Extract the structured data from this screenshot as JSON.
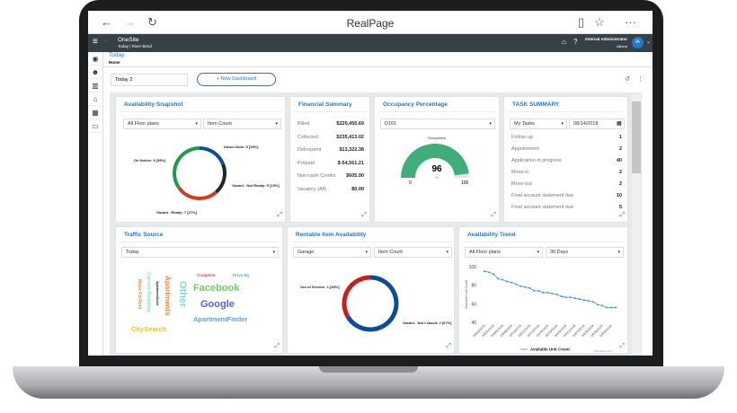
{
  "browser": {
    "title": "RealPage"
  },
  "header": {
    "app": "OneSite",
    "context": "Today | River Bend",
    "user": "Internal Administrator",
    "user_sub": "Allbest",
    "avatar": "IA"
  },
  "breadcrumb": {
    "title": "Today",
    "sub": "Home"
  },
  "toolbar": {
    "dashboard_value": "Today 2",
    "new_dashboard": "+ New Dashboard"
  },
  "availability_snapshot": {
    "title": "Availability Snapshot",
    "filter1": "All Floor plans",
    "filter2": "Item Count",
    "slices": [
      {
        "label": "Down Units: 5 [19%]",
        "value": 5,
        "color": "#0a4f96"
      },
      {
        "label": "Vacant - Not Ready: 5 [19%]",
        "value": 5,
        "color": "#1d252c"
      },
      {
        "label": "Vacant - Ready: 7 [27%]",
        "value": 7,
        "color": "#cc3f1d"
      },
      {
        "label": "On Notice: 9 [35%]",
        "value": 9,
        "color": "#1b9a4a"
      }
    ]
  },
  "financial_summary": {
    "title": "Financial Summary",
    "rows": [
      {
        "label": "Billed",
        "value": "$220,450.69"
      },
      {
        "label": "Collected",
        "value": "$235,413.02"
      },
      {
        "label": "Delinquent",
        "value": "$13,322.38"
      },
      {
        "label": "Prepaid",
        "value": "$-54,561.21"
      },
      {
        "label": "Non-cash Credits",
        "value": "$605.00"
      },
      {
        "label": "Vacancy (All)",
        "value": "$0.00"
      }
    ]
  },
  "occupancy": {
    "title": "Occupancy Percentage",
    "filter": "D101",
    "gauge_title": "Occupancy",
    "value": "96",
    "unit": "%",
    "min": "0",
    "max": "100",
    "color": "#3fae7a"
  },
  "task_summary": {
    "title": "TASK SUMMARY",
    "filter": "My Tasks",
    "date": "08/14/2018",
    "rows": [
      {
        "label": "Follow-up",
        "value": "1"
      },
      {
        "label": "Appointment",
        "value": "2"
      },
      {
        "label": "Application in progress",
        "value": "40"
      },
      {
        "label": "Move-in",
        "value": "2"
      },
      {
        "label": "Move-out",
        "value": "2"
      },
      {
        "label": "Final account statement due",
        "value": "10"
      },
      {
        "label": "Final account statement due",
        "value": "5"
      }
    ]
  },
  "traffic_source": {
    "title": "Traffic Source",
    "filter": "Today",
    "words": [
      {
        "text": "Facebook",
        "color": "#6ad15a"
      },
      {
        "text": "Google",
        "color": "#5a5fd6"
      },
      {
        "text": "ApartmentFinder",
        "color": "#5aa6e0"
      },
      {
        "text": "CitySearch",
        "color": "#e5c52a"
      },
      {
        "text": "Other",
        "color": "#7fd9dc"
      },
      {
        "text": "Apartments",
        "color": "#f08a3c"
      },
      {
        "text": "Current-Resident",
        "color": "#7fd9dc"
      },
      {
        "text": "Move ForRent",
        "color": "#f08a3c"
      },
      {
        "text": "Craigslist",
        "color": "#e0464d"
      },
      {
        "text": "Drive-By",
        "color": "#5aa6e0"
      },
      {
        "text": "ApartmentGuide",
        "color": "#222222"
      }
    ]
  },
  "rentable": {
    "title": "Rentable Item Availability",
    "filter1": "Garage",
    "filter2": "Item Count",
    "slices": [
      {
        "label": "Vacant - Not Leased: 2 [67%]",
        "value": 2,
        "color": "#0a4f96"
      },
      {
        "label": "Out of Service: 1 [33%]",
        "value": 1,
        "color": "#cc1d1d"
      }
    ]
  },
  "availability_trend": {
    "title": "Availability Trend",
    "filter1": "All Floor plans",
    "filter2": "30 Days"
  },
  "chart_data": {
    "type": "line",
    "ylabel": "Available Unit Count",
    "ylim": [
      40,
      100
    ],
    "yticks": [
      40,
      60,
      80,
      100
    ],
    "xticklabels": [
      "04/02/2018",
      "04/04/2018",
      "04/06/2018",
      "04/08/2018",
      "04/10/2018",
      "04/12/2018",
      "04/14/2018",
      "04/16/2018",
      "04/18/2018",
      "04/20/2018",
      "04/22/2018",
      "04/24/2018",
      "04/26/2018",
      "04/28/2018",
      "04/30/2018"
    ],
    "series": [
      {
        "name": "Available Unit Count",
        "color": "#3d8fe0",
        "values": [
          95,
          94,
          92,
          87,
          86,
          84,
          83,
          81,
          79,
          78,
          77,
          74,
          74,
          72,
          72,
          71,
          70,
          68,
          67,
          67,
          66,
          65,
          64,
          63,
          62,
          59,
          58,
          56,
          56,
          56
        ]
      }
    ],
    "credit": "highcharts.com"
  }
}
